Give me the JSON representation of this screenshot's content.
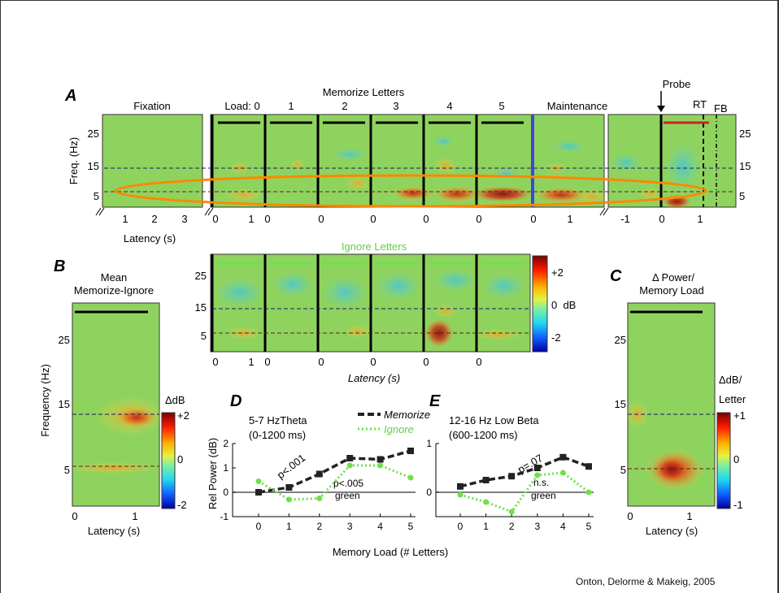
{
  "credit": "Onton, Delorme & Makeig, 2005",
  "colors": {
    "green_bg": "#8fd35f",
    "memorize_line": "#222222",
    "ignore_line": "#6ee04a",
    "highlight_ellipse": "#ff8800",
    "probe_line": "#cc2222",
    "divider_blue": "#4444dd"
  },
  "panel_a": {
    "letter": "A",
    "title": "Memorize Letters",
    "segment_labels": [
      "Fixation",
      "Load: 0",
      "1",
      "2",
      "3",
      "4",
      "5",
      "Maintenance"
    ],
    "probe_label": "Probe",
    "rt_label": "RT",
    "fb_label": "FB",
    "ylabel": "Freq. (Hz)",
    "yticks": [
      "25",
      "15",
      "5"
    ],
    "right_yticks": [
      "25",
      "15",
      "5"
    ],
    "xlabel": "Latency (s)",
    "fixation_xticks": [
      "1",
      "2",
      "3"
    ],
    "load_xticks": [
      "0",
      "1",
      "0",
      "0",
      "0",
      "0",
      "0",
      "0",
      "1"
    ],
    "probe_xticks": [
      "-1",
      "0",
      "1"
    ]
  },
  "panel_ignore": {
    "title": "Ignore Letters",
    "xticks": [
      "0",
      "1",
      "0",
      "0",
      "0",
      "0",
      "0"
    ],
    "yticks": [
      "25",
      "15",
      "5"
    ],
    "xlabel": "Latency (s)",
    "colorbar_ticks": [
      "+2",
      "0  dB",
      "-2"
    ]
  },
  "panel_b": {
    "letter": "B",
    "title_line1": "Mean",
    "title_line2": "Memorize-Ignore",
    "ylabel": "Frequency (Hz)",
    "yticks": [
      "25",
      "15",
      "5"
    ],
    "xticks": [
      "0",
      "1"
    ],
    "xlabel": "Latency (s)",
    "colorbar_label": "ΔdB",
    "colorbar_ticks": [
      "+2",
      "0",
      "-2"
    ]
  },
  "panel_c": {
    "letter": "C",
    "title_line1": "Δ Power/",
    "title_line2": "Memory Load",
    "yticks": [
      "25",
      "15",
      "5"
    ],
    "xticks": [
      "0",
      "1"
    ],
    "xlabel": "Latency (s)",
    "colorbar_label1": "ΔdB/",
    "colorbar_label2": "Letter",
    "colorbar_ticks": [
      "+1",
      "0",
      "-1"
    ]
  },
  "chart_data": [
    {
      "type": "line",
      "panel": "D",
      "title": "5-7 HzTheta",
      "subtitle": "(0-1200 ms)",
      "ylabel": "Rel Power (dB)",
      "xlabel": "Memory Load (# Letters)",
      "ylim": [
        -1,
        2
      ],
      "yticks": [
        "2",
        "1",
        "0",
        "-1"
      ],
      "x": [
        "0",
        "1",
        "2",
        "3",
        "4",
        "5"
      ],
      "series": [
        {
          "name": "Memorize",
          "values": [
            0.0,
            0.2,
            0.75,
            1.4,
            1.35,
            1.7
          ]
        },
        {
          "name": "Ignore",
          "values": [
            0.45,
            -0.3,
            -0.25,
            1.1,
            1.1,
            0.6
          ]
        }
      ],
      "annotations": [
        "p<.001",
        "p<.005",
        "green"
      ],
      "legend": "top-right"
    },
    {
      "type": "line",
      "panel": "E",
      "title": "12-16 Hz Low Beta",
      "subtitle": "(600-1200 ms)",
      "xlabel": "",
      "ylim": [
        -0.5,
        1
      ],
      "yticks": [
        "1",
        "0"
      ],
      "x": [
        "0",
        "1",
        "2",
        "3",
        "4",
        "5"
      ],
      "series": [
        {
          "name": "Memorize",
          "values": [
            0.12,
            0.25,
            0.33,
            0.5,
            0.72,
            0.53
          ]
        },
        {
          "name": "Ignore",
          "values": [
            -0.05,
            -0.2,
            -0.4,
            0.35,
            0.4,
            0.0
          ]
        }
      ],
      "annotations": [
        "p=.07",
        "n.s.",
        "green"
      ]
    }
  ]
}
